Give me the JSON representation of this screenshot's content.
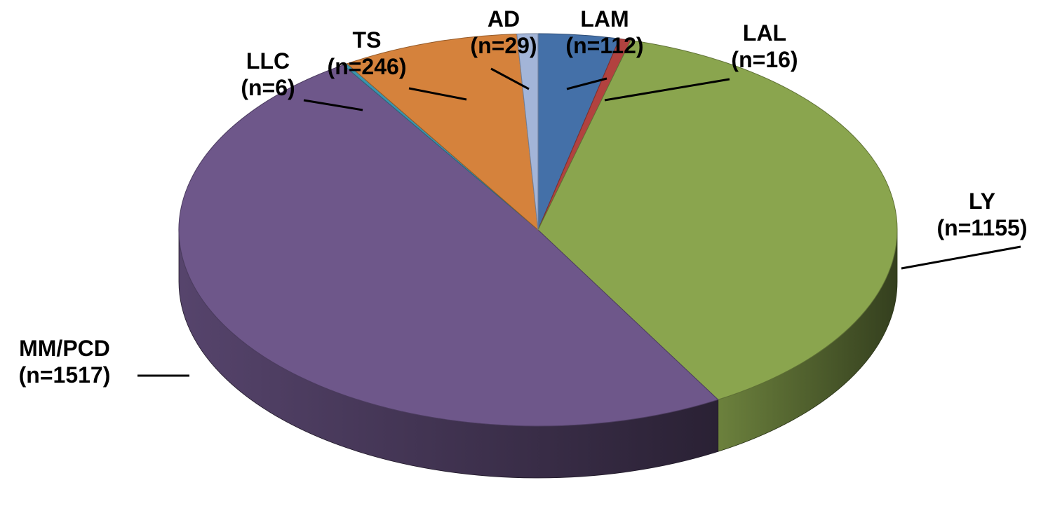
{
  "chart_data": {
    "type": "pie",
    "title": "",
    "slices": [
      {
        "label": "LAM",
        "count_text": "(n=112)",
        "value": 112,
        "color": "#4470A8"
      },
      {
        "label": "LAL",
        "count_text": "(n=16)",
        "value": 16,
        "color": "#B2423F"
      },
      {
        "label": "LY",
        "count_text": "(n=1155)",
        "value": 1155,
        "color": "#8AA54E"
      },
      {
        "label": "MM/PCD",
        "count_text": "(n=1517)",
        "value": 1517,
        "color": "#6E578A"
      },
      {
        "label": "LLC",
        "count_text": "(n=6)",
        "value": 6,
        "color": "#3B94AE"
      },
      {
        "label": "TS",
        "count_text": "(n=246)",
        "value": 246,
        "color": "#D5823C"
      },
      {
        "label": "AD",
        "count_text": "(n=29)",
        "value": 29,
        "color": "#A3B5D8"
      }
    ],
    "legend": "none",
    "style": "3d-exploded-labels-with-leader-lines"
  }
}
